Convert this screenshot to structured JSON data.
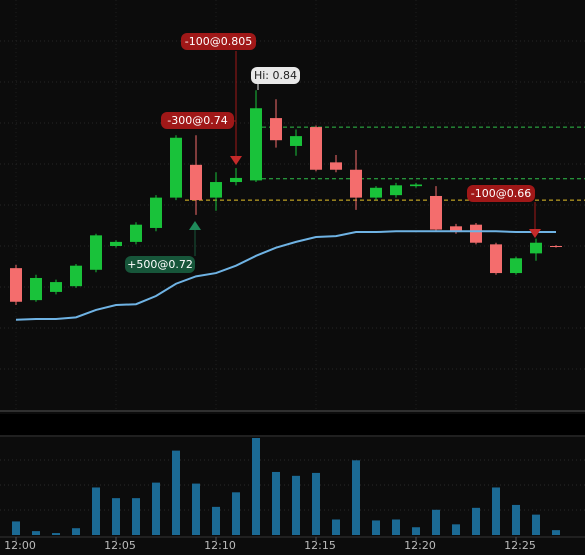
{
  "chart_data": {
    "type": "candlestick",
    "categories": [
      "12:00",
      null,
      null,
      null,
      null,
      "12:05",
      null,
      null,
      null,
      null,
      "12:10",
      null,
      null,
      null,
      null,
      "12:15",
      null,
      null,
      null,
      null,
      "12:20",
      null,
      null,
      null,
      null,
      "12:25",
      null,
      null
    ],
    "open": [
      0.623,
      0.584,
      0.594,
      0.601,
      0.621,
      0.65,
      0.655,
      0.672,
      0.709,
      0.749,
      0.709,
      0.728,
      0.73,
      0.806,
      0.772,
      0.795,
      0.752,
      0.743,
      0.709,
      0.712,
      0.723,
      0.711,
      0.674,
      0.676,
      0.652,
      0.617,
      0.641,
      0.65
    ],
    "high": [
      0.627,
      0.615,
      0.609,
      0.628,
      0.665,
      0.657,
      0.679,
      0.712,
      0.785,
      0.785,
      0.74,
      0.745,
      0.84,
      0.829,
      0.792,
      0.797,
      0.761,
      0.767,
      0.723,
      0.727,
      0.727,
      0.723,
      0.677,
      0.678,
      0.654,
      0.637,
      0.659,
      0.651
    ],
    "low": [
      0.578,
      0.582,
      0.591,
      0.599,
      0.618,
      0.648,
      0.652,
      0.668,
      0.706,
      0.688,
      0.693,
      0.724,
      0.728,
      0.77,
      0.76,
      0.741,
      0.74,
      0.694,
      0.706,
      0.709,
      0.721,
      0.668,
      0.665,
      0.652,
      0.615,
      0.615,
      0.632,
      0.648
    ],
    "close": [
      0.582,
      0.611,
      0.606,
      0.626,
      0.663,
      0.655,
      0.676,
      0.709,
      0.782,
      0.706,
      0.728,
      0.733,
      0.818,
      0.779,
      0.784,
      0.743,
      0.743,
      0.709,
      0.721,
      0.724,
      0.725,
      0.67,
      0.667,
      0.654,
      0.617,
      0.635,
      0.654,
      0.649
    ],
    "up_color": "#19c23a",
    "down_color": "#f46d6d",
    "ylim": [
      0.45,
      0.95
    ],
    "yticks": [
      0.5,
      0.55,
      0.6,
      0.65,
      0.7,
      0.75,
      0.8,
      0.85,
      0.9
    ],
    "grid": true,
    "ma": {
      "color": "#6fb3e4",
      "values": [
        0.56,
        0.561,
        0.561,
        0.563,
        0.572,
        0.578,
        0.579,
        0.589,
        0.604,
        0.613,
        0.617,
        0.626,
        0.638,
        0.648,
        0.655,
        0.661,
        0.662,
        0.667,
        0.667,
        0.668,
        0.668,
        0.668,
        0.668,
        0.668,
        0.668,
        0.667,
        0.667,
        0.667
      ]
    },
    "levels": [
      {
        "value": 0.795,
        "color": "#2fbf4a"
      },
      {
        "value": 0.732,
        "color": "#2fbf4a"
      },
      {
        "value": 0.706,
        "color": "#e6c229"
      }
    ],
    "volume": {
      "color": "#1b6a94",
      "ylim": [
        0,
        100
      ],
      "values": [
        14,
        4,
        2,
        7,
        49,
        38,
        38,
        54,
        87,
        53,
        29,
        44,
        100,
        65,
        61,
        64,
        16,
        77,
        15,
        16,
        8,
        26,
        11,
        28,
        49,
        31,
        21,
        5
      ]
    },
    "annotations": [
      {
        "text": "-100@0.805"
      },
      {
        "text": "Hi: 0.84"
      },
      {
        "text": "-300@0.74"
      },
      {
        "text": "+500@0.72"
      },
      {
        "text": "-100@0.66"
      }
    ]
  }
}
